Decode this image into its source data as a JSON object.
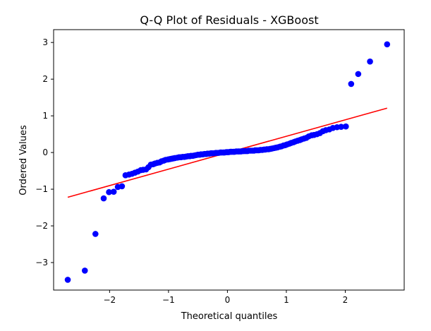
{
  "chart_data": {
    "type": "scatter",
    "title": "Q-Q Plot of Residuals - XGBoost",
    "xlabel": "Theoretical quantiles",
    "ylabel": "Ordered Values",
    "xlim": [
      -2.95,
      3.0
    ],
    "ylim": [
      -3.75,
      3.35
    ],
    "x_ticks": [
      -2,
      -1,
      0,
      1,
      2
    ],
    "x_tick_labels": [
      "−2",
      "−1",
      "0",
      "1",
      "2"
    ],
    "y_ticks": [
      -3,
      -2,
      -1,
      0,
      1,
      2,
      3
    ],
    "y_tick_labels": [
      "−3",
      "−2",
      "−1",
      "0",
      "1",
      "2",
      "3"
    ],
    "grid": false,
    "marker_color": "#0000ff",
    "line_color": "#ff0000",
    "points": {
      "x": [
        -2.71,
        -2.42,
        -2.24,
        -2.1,
        -2.01,
        -1.93,
        -1.86,
        -1.79,
        -1.73,
        -1.67,
        -1.62,
        -1.57,
        -1.52,
        -1.47,
        -1.43,
        -1.38,
        -1.34,
        -1.3,
        -1.26,
        -1.23,
        -1.19,
        -1.15,
        -1.12,
        -1.08,
        -1.05,
        -1.01,
        -0.98,
        -0.95,
        -0.92,
        -0.89,
        -0.85,
        -0.82,
        -0.79,
        -0.76,
        -0.73,
        -0.7,
        -0.67,
        -0.64,
        -0.62,
        -0.59,
        -0.56,
        -0.53,
        -0.5,
        -0.47,
        -0.45,
        -0.42,
        -0.39,
        -0.36,
        -0.34,
        -0.31,
        -0.28,
        -0.26,
        -0.23,
        -0.2,
        -0.18,
        -0.15,
        -0.12,
        -0.1,
        -0.07,
        -0.05,
        -0.02,
        0.0,
        0.02,
        0.05,
        0.07,
        0.1,
        0.12,
        0.15,
        0.18,
        0.2,
        0.23,
        0.26,
        0.28,
        0.31,
        0.34,
        0.36,
        0.39,
        0.42,
        0.45,
        0.47,
        0.5,
        0.53,
        0.56,
        0.59,
        0.62,
        0.64,
        0.67,
        0.7,
        0.73,
        0.76,
        0.79,
        0.82,
        0.85,
        0.89,
        0.92,
        0.95,
        0.98,
        1.01,
        1.05,
        1.08,
        1.12,
        1.15,
        1.19,
        1.23,
        1.26,
        1.3,
        1.34,
        1.38,
        1.43,
        1.47,
        1.52,
        1.57,
        1.62,
        1.67,
        1.73,
        1.79,
        1.86,
        1.93,
        2.01,
        2.1,
        2.22,
        2.42,
        2.71
      ],
      "y": [
        -3.47,
        -3.22,
        -2.22,
        -1.25,
        -1.08,
        -1.07,
        -0.94,
        -0.92,
        -0.62,
        -0.6,
        -0.58,
        -0.55,
        -0.52,
        -0.48,
        -0.47,
        -0.46,
        -0.4,
        -0.33,
        -0.32,
        -0.3,
        -0.28,
        -0.27,
        -0.24,
        -0.22,
        -0.2,
        -0.19,
        -0.18,
        -0.17,
        -0.16,
        -0.15,
        -0.14,
        -0.13,
        -0.13,
        -0.12,
        -0.12,
        -0.11,
        -0.1,
        -0.1,
        -0.09,
        -0.09,
        -0.08,
        -0.07,
        -0.06,
        -0.06,
        -0.05,
        -0.05,
        -0.04,
        -0.04,
        -0.03,
        -0.03,
        -0.02,
        -0.02,
        -0.02,
        -0.01,
        -0.01,
        -0.01,
        0.0,
        0.0,
        0.0,
        0.0,
        0.01,
        0.01,
        0.01,
        0.02,
        0.02,
        0.02,
        0.02,
        0.03,
        0.03,
        0.03,
        0.03,
        0.04,
        0.04,
        0.04,
        0.04,
        0.05,
        0.05,
        0.05,
        0.05,
        0.06,
        0.06,
        0.06,
        0.07,
        0.07,
        0.08,
        0.08,
        0.09,
        0.09,
        0.1,
        0.11,
        0.12,
        0.13,
        0.14,
        0.16,
        0.17,
        0.19,
        0.2,
        0.22,
        0.24,
        0.26,
        0.28,
        0.3,
        0.32,
        0.34,
        0.36,
        0.38,
        0.4,
        0.44,
        0.47,
        0.48,
        0.5,
        0.53,
        0.58,
        0.61,
        0.63,
        0.67,
        0.69,
        0.7,
        0.71,
        1.87,
        2.14,
        2.48,
        2.95
      ]
    },
    "fit_line": {
      "x": [
        -2.71,
        2.71
      ],
      "y": [
        -1.22,
        1.21
      ]
    }
  }
}
